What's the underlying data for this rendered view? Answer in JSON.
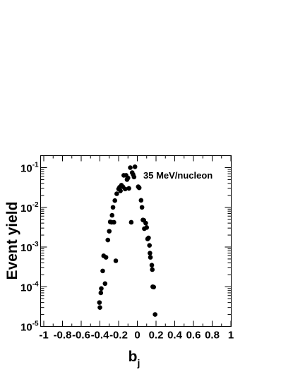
{
  "chart_data": {
    "type": "scatter",
    "title": "",
    "annotation": "35 MeV/nucleon",
    "xlabel": {
      "main": "b",
      "sub": "j"
    },
    "ylabel": "Event yield",
    "xlim": [
      -1,
      1
    ],
    "ylim": [
      1e-05,
      0.2
    ],
    "yscale": "log",
    "grid": false,
    "legend": "none",
    "xticks": [
      {
        "value": -1,
        "label": "-1"
      },
      {
        "value": -0.8,
        "label": "-0.8"
      },
      {
        "value": -0.6,
        "label": "-0.6"
      },
      {
        "value": -0.4,
        "label": "-0.4"
      },
      {
        "value": -0.2,
        "label": "-0.2"
      },
      {
        "value": 0,
        "label": "0"
      },
      {
        "value": 0.2,
        "label": "0.2"
      },
      {
        "value": 0.4,
        "label": "0.4"
      },
      {
        "value": 0.6,
        "label": "0.6"
      },
      {
        "value": 0.8,
        "label": "0.8"
      },
      {
        "value": 1,
        "label": "1"
      }
    ],
    "yticks": [
      {
        "value": 1e-05,
        "base": "10",
        "exp": "-5"
      },
      {
        "value": 0.0001,
        "base": "10",
        "exp": "-4"
      },
      {
        "value": 0.001,
        "base": "10",
        "exp": "-3"
      },
      {
        "value": 0.01,
        "base": "10",
        "exp": "-2"
      },
      {
        "value": 0.1,
        "base": "10",
        "exp": "-1"
      }
    ],
    "marker_color": "#000000",
    "points": [
      {
        "x": -0.405,
        "y": 4e-05
      },
      {
        "x": -0.4,
        "y": 3e-05
      },
      {
        "x": -0.39,
        "y": 7e-05
      },
      {
        "x": -0.385,
        "y": 9e-05
      },
      {
        "x": -0.37,
        "y": 0.00025
      },
      {
        "x": -0.36,
        "y": 0.0006
      },
      {
        "x": -0.345,
        "y": 0.00012
      },
      {
        "x": -0.335,
        "y": 0.00055
      },
      {
        "x": -0.315,
        "y": 0.0015
      },
      {
        "x": -0.3,
        "y": 0.0025
      },
      {
        "x": -0.29,
        "y": 0.0043
      },
      {
        "x": -0.275,
        "y": 0.0042
      },
      {
        "x": -0.27,
        "y": 0.0063
      },
      {
        "x": -0.26,
        "y": 0.01
      },
      {
        "x": -0.25,
        "y": 0.0042
      },
      {
        "x": -0.24,
        "y": 0.0148
      },
      {
        "x": -0.23,
        "y": 0.00045
      },
      {
        "x": -0.22,
        "y": 0.022
      },
      {
        "x": -0.2,
        "y": 0.029
      },
      {
        "x": -0.19,
        "y": 0.032
      },
      {
        "x": -0.18,
        "y": 0.026
      },
      {
        "x": -0.17,
        "y": 0.036
      },
      {
        "x": -0.155,
        "y": 0.033
      },
      {
        "x": -0.145,
        "y": 0.064
      },
      {
        "x": -0.13,
        "y": 0.029
      },
      {
        "x": -0.12,
        "y": 0.064
      },
      {
        "x": -0.11,
        "y": 0.05
      },
      {
        "x": -0.1,
        "y": 0.055
      },
      {
        "x": -0.09,
        "y": 0.03
      },
      {
        "x": -0.075,
        "y": 0.1
      },
      {
        "x": -0.065,
        "y": 0.0042
      },
      {
        "x": -0.055,
        "y": 0.075
      },
      {
        "x": -0.045,
        "y": 0.067
      },
      {
        "x": -0.035,
        "y": 0.058
      },
      {
        "x": -0.025,
        "y": 0.105
      },
      {
        "x": 0.01,
        "y": 0.033
      },
      {
        "x": 0.02,
        "y": 0.031
      },
      {
        "x": 0.04,
        "y": 0.015
      },
      {
        "x": 0.05,
        "y": 0.01
      },
      {
        "x": 0.06,
        "y": 0.0048
      },
      {
        "x": 0.07,
        "y": 0.0047
      },
      {
        "x": 0.075,
        "y": 0.0029
      },
      {
        "x": 0.09,
        "y": 0.004
      },
      {
        "x": 0.1,
        "y": 0.0031
      },
      {
        "x": 0.11,
        "y": 0.0016
      },
      {
        "x": 0.12,
        "y": 0.0017
      },
      {
        "x": 0.13,
        "y": 0.0011
      },
      {
        "x": 0.135,
        "y": 0.0007
      },
      {
        "x": 0.14,
        "y": 0.00055
      },
      {
        "x": 0.155,
        "y": 0.00035
      },
      {
        "x": 0.16,
        "y": 0.00027
      },
      {
        "x": 0.165,
        "y": 0.0001
      },
      {
        "x": 0.175,
        "y": 9.8e-05
      },
      {
        "x": 0.19,
        "y": 2e-05
      }
    ]
  }
}
